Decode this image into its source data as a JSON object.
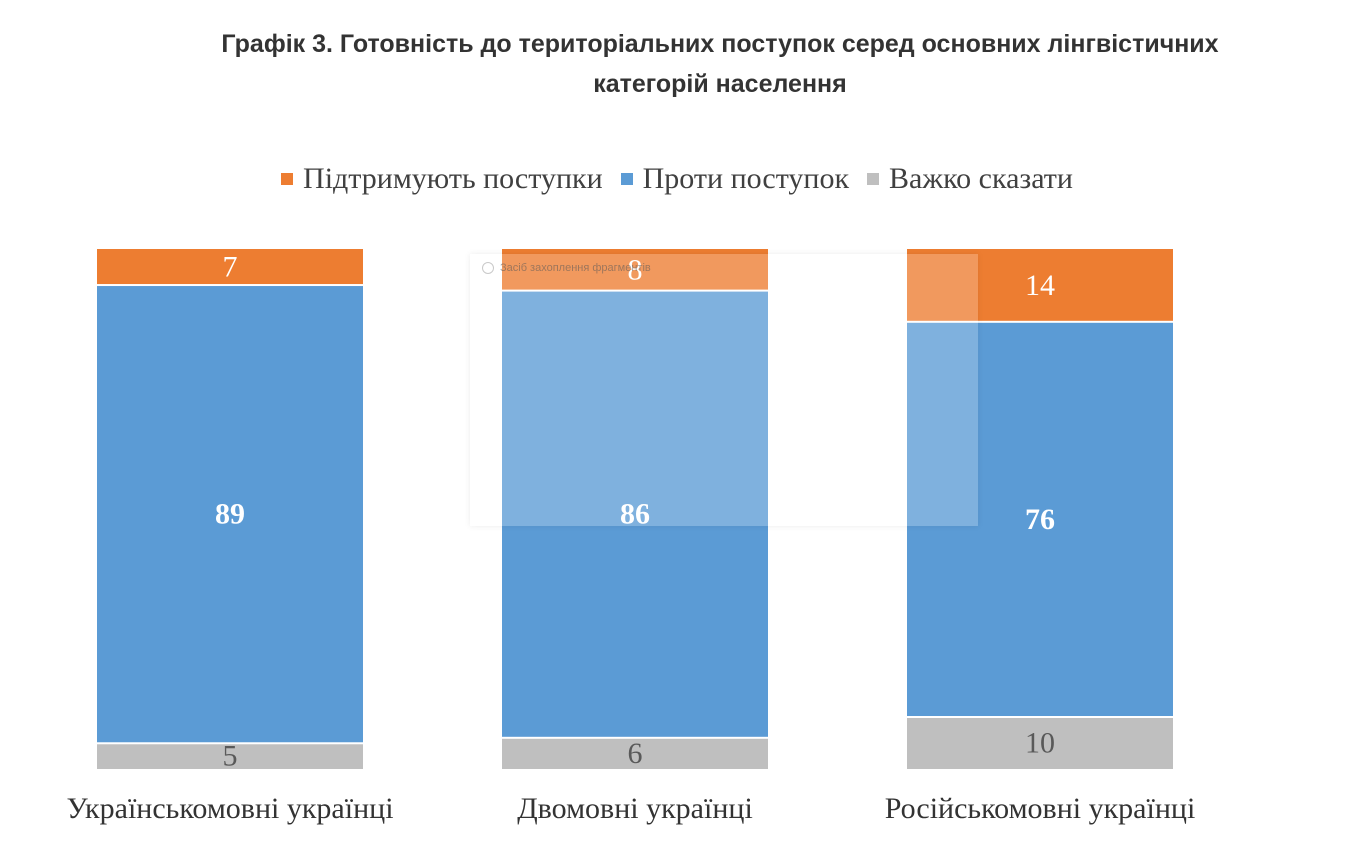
{
  "chart_data": {
    "type": "bar",
    "stacked": true,
    "title": "Графік 3. Готовність до територіальних поступок серед основних лінгвістичних категорій населення",
    "title_lines": [
      "Графік 3. Готовність до територіальних поступок серед основних лінгвістичних",
      "категорій населення"
    ],
    "categories": [
      "Українськомовні українці",
      "Двомовні українці",
      "Російськомовні українці"
    ],
    "series": [
      {
        "name": "Підтримують поступки",
        "values": [
          7,
          8,
          14
        ],
        "color": "#ED7D31",
        "label_color": "#ffffff",
        "bold": false
      },
      {
        "name": "Проти поступок",
        "values": [
          89,
          86,
          76
        ],
        "color": "#5B9BD5",
        "label_color": "#ffffff",
        "bold": true
      },
      {
        "name": "Важко сказати",
        "values": [
          5,
          6,
          10
        ],
        "color": "#BFBFBF",
        "label_color": "#595959",
        "bold": false
      }
    ],
    "legend_position": "top",
    "grid": false,
    "axes_visible": false
  },
  "overlay": {
    "caption": "Засіб захоплення фрагментів"
  }
}
